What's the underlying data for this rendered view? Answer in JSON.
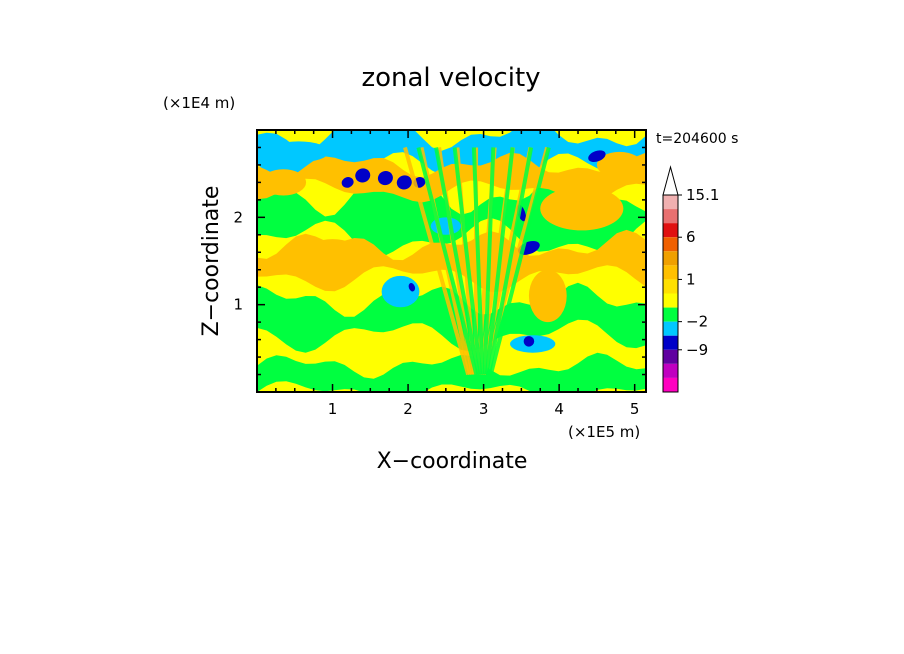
{
  "chart_data": {
    "type": "heatmap",
    "title": "zonal velocity",
    "xlabel": "X−coordinate",
    "ylabel": "Z−coordinate",
    "x_unit": "(×1E5 m)",
    "y_unit": "(×1E4 m)",
    "time_label": "t=204600 s",
    "xlim": [
      0,
      5.15
    ],
    "ylim": [
      0,
      3.0
    ],
    "x_ticks": [
      "1",
      "2",
      "3",
      "4",
      "5"
    ],
    "y_ticks": [
      "1",
      "2"
    ],
    "colorbar": {
      "tick_labels": [
        "15.1",
        "6",
        "1",
        "−2",
        "−9"
      ],
      "levels": [
        15.1,
        12,
        9,
        6,
        4,
        2,
        1,
        0,
        -1,
        -2,
        -5,
        -9,
        -12,
        -15
      ],
      "colors": [
        "#f0b0b0",
        "#e87070",
        "#e01010",
        "#f06000",
        "#f0a000",
        "#ffc000",
        "#ffe000",
        "#ffff00",
        "#00ff40",
        "#00c8ff",
        "#0000c8",
        "#6000a0",
        "#c000c0",
        "#ff00c0"
      ]
    },
    "field": {
      "background_class": "yellow",
      "features": [
        {
          "kind": "band",
          "class": "green",
          "xrange": [
            0,
            5.15
          ],
          "z": 0.15,
          "amp": 0.15
        },
        {
          "kind": "band",
          "class": "green",
          "xrange": [
            0,
            5.15
          ],
          "z": 0.85,
          "amp": 0.2
        },
        {
          "kind": "band",
          "class": "green",
          "xrange": [
            0,
            5.15
          ],
          "z": 2.0,
          "amp": 0.25
        },
        {
          "kind": "band",
          "class": "cyan",
          "xrange": [
            0,
            5.15
          ],
          "z": 2.75,
          "amp": 0.2
        },
        {
          "kind": "band",
          "class": "orange",
          "xrange": [
            0,
            5.15
          ],
          "z": 2.45,
          "amp": 0.15
        },
        {
          "kind": "band",
          "class": "orange",
          "xrange": [
            0,
            5.15
          ],
          "z": 1.5,
          "amp": 0.18
        },
        {
          "kind": "blob",
          "class": "orange",
          "x": 0.35,
          "z": 2.4,
          "rx": 0.3,
          "rz": 0.15
        },
        {
          "kind": "blob",
          "class": "orange",
          "x": 1.0,
          "z": 1.6,
          "rx": 0.35,
          "rz": 0.15
        },
        {
          "kind": "blob",
          "class": "orange",
          "x": 4.3,
          "z": 2.1,
          "rx": 0.55,
          "rz": 0.25
        },
        {
          "kind": "blob",
          "class": "orange",
          "x": 4.8,
          "z": 2.6,
          "rx": 0.3,
          "rz": 0.15
        },
        {
          "kind": "blob",
          "class": "orange",
          "x": 3.85,
          "z": 1.1,
          "rx": 0.25,
          "rz": 0.3
        },
        {
          "kind": "blob",
          "class": "cyan",
          "x": 0.55,
          "z": 2.75,
          "rx": 0.4,
          "rz": 0.12
        },
        {
          "kind": "blob",
          "class": "cyan",
          "x": 1.9,
          "z": 1.15,
          "rx": 0.25,
          "rz": 0.18
        },
        {
          "kind": "blob",
          "class": "cyan",
          "x": 3.65,
          "z": 0.55,
          "rx": 0.3,
          "rz": 0.1
        },
        {
          "kind": "blob",
          "class": "cyan",
          "x": 2.5,
          "z": 1.9,
          "rx": 0.2,
          "rz": 0.1
        },
        {
          "kind": "blob",
          "class": "blue",
          "x": 1.2,
          "z": 2.4,
          "rx": 0.08,
          "rz": 0.06
        },
        {
          "kind": "blob",
          "class": "blue",
          "x": 1.4,
          "z": 2.48,
          "rx": 0.1,
          "rz": 0.08
        },
        {
          "kind": "blob",
          "class": "blue",
          "x": 1.7,
          "z": 2.45,
          "rx": 0.1,
          "rz": 0.08
        },
        {
          "kind": "blob",
          "class": "blue",
          "x": 1.95,
          "z": 2.4,
          "rx": 0.1,
          "rz": 0.08
        },
        {
          "kind": "blob",
          "class": "blue",
          "x": 2.15,
          "z": 2.4,
          "rx": 0.08,
          "rz": 0.06
        },
        {
          "kind": "blob",
          "class": "blue",
          "x": 4.5,
          "z": 2.7,
          "rx": 0.12,
          "rz": 0.06
        },
        {
          "kind": "blob",
          "class": "blue",
          "x": 3.6,
          "z": 1.65,
          "rx": 0.15,
          "rz": 0.07
        },
        {
          "kind": "blob",
          "class": "blue",
          "x": 3.6,
          "z": 0.58,
          "rx": 0.07,
          "rz": 0.06
        },
        {
          "kind": "blob",
          "class": "blue",
          "x": 3.5,
          "z": 2.05,
          "rx": 0.05,
          "rz": 0.1
        },
        {
          "kind": "blob",
          "class": "blue",
          "x": 2.05,
          "z": 1.2,
          "rx": 0.04,
          "rz": 0.05
        },
        {
          "kind": "wavefan",
          "class": "orange",
          "x0": 2.9,
          "z0": 0.2,
          "spread": 1.1,
          "count": 9
        },
        {
          "kind": "wavefan",
          "class": "green",
          "x0": 3.0,
          "z0": 0.2,
          "spread": 1.0,
          "count": 8
        }
      ]
    }
  }
}
